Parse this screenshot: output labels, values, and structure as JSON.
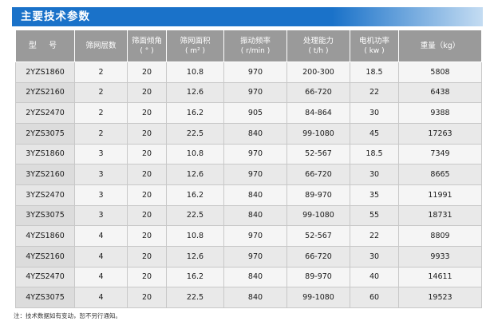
{
  "title": "主要技术参数",
  "headers": [
    {
      "label": "型 号",
      "sub": ""
    },
    {
      "label": "筛网层数",
      "sub": ""
    },
    {
      "label": "筛面倾角",
      "sub": "( ° )"
    },
    {
      "label": "筛网面积",
      "sub": "( m² )"
    },
    {
      "label": "振动频率",
      "sub": "( r/min )"
    },
    {
      "label": "处理能力",
      "sub": "( t/h )"
    },
    {
      "label": "电机功率",
      "sub": "( kw )"
    },
    {
      "label": "重量（kg）",
      "sub": ""
    }
  ],
  "rows": [
    [
      "2YZS1860",
      "2",
      "20",
      "10.8",
      "970",
      "200-300",
      "18.5",
      "5808"
    ],
    [
      "2YZS2160",
      "2",
      "20",
      "12.6",
      "970",
      "66-720",
      "22",
      "6438"
    ],
    [
      "2YZS2470",
      "2",
      "20",
      "16.2",
      "905",
      "84-864",
      "30",
      "9388"
    ],
    [
      "2YZS3075",
      "2",
      "20",
      "22.5",
      "840",
      "99-1080",
      "45",
      "17263"
    ],
    [
      "3YZS1860",
      "3",
      "20",
      "10.8",
      "970",
      "52-567",
      "18.5",
      "7349"
    ],
    [
      "3YZS2160",
      "3",
      "20",
      "12.6",
      "970",
      "66-720",
      "30",
      "8665"
    ],
    [
      "3YZS2470",
      "3",
      "20",
      "16.2",
      "840",
      "89-970",
      "35",
      "11991"
    ],
    [
      "3YZS3075",
      "3",
      "20",
      "22.5",
      "840",
      "99-1080",
      "55",
      "18731"
    ],
    [
      "4YZS1860",
      "4",
      "20",
      "10.8",
      "970",
      "52-567",
      "22",
      "8809"
    ],
    [
      "4YZS2160",
      "4",
      "20",
      "12.6",
      "970",
      "66-720",
      "30",
      "9933"
    ],
    [
      "4YZS2470",
      "4",
      "20",
      "16.2",
      "840",
      "89-970",
      "40",
      "14611"
    ],
    [
      "4YZS3075",
      "4",
      "20",
      "22.5",
      "840",
      "99-1080",
      "60",
      "19523"
    ]
  ],
  "note": "注：技术数据如有变动，恕不另行通知。",
  "colors": {
    "title_bar": "#1a72c9",
    "header_bg": "#9a9a9a",
    "row_bg": "#f5f5f5",
    "row_alt_bg": "#e9e9e9"
  }
}
